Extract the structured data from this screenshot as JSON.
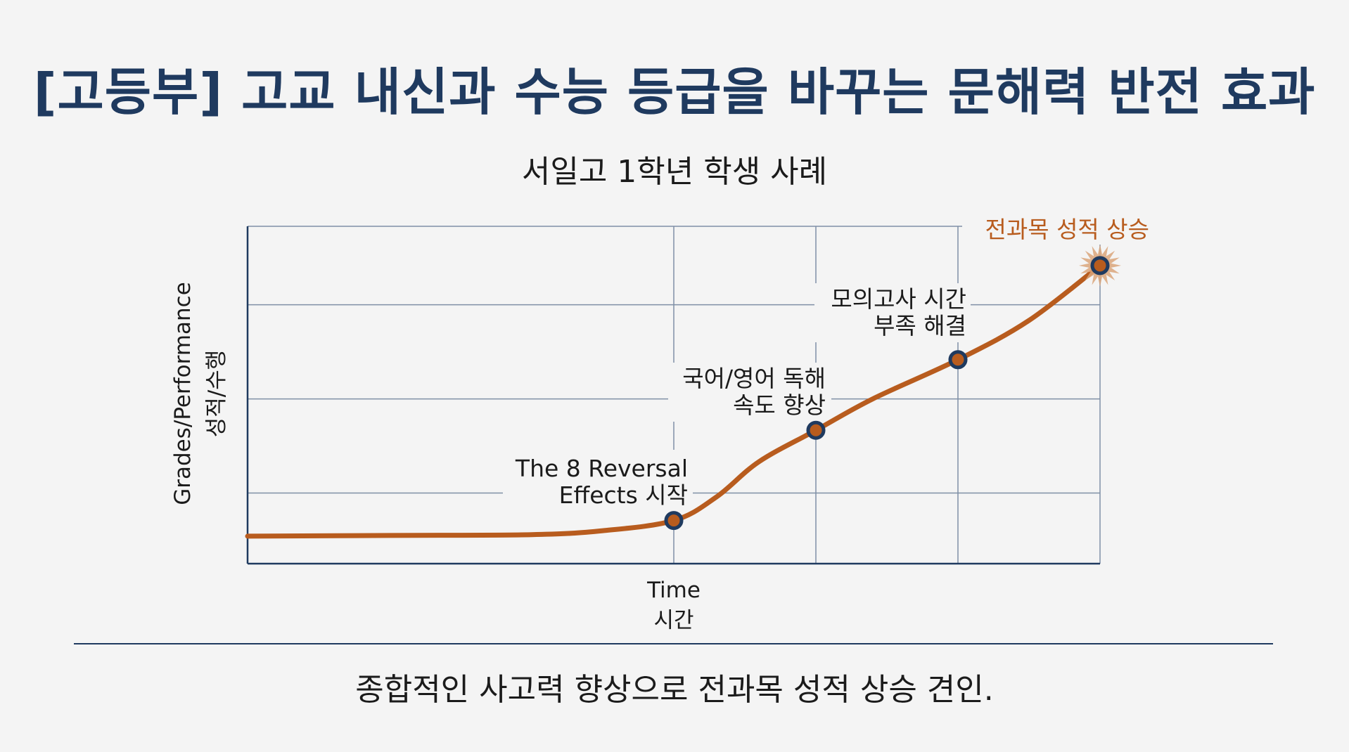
{
  "title": "[고등부] 고교 내신과 수능 등급을 바꾸는 문해력 반전 효과",
  "subtitle": "서일고 1학년 학생 사례",
  "caption": "종합적인 사고력 향상으로 전과목 성적 상승 견인.",
  "colors": {
    "title": "#1f3a5f",
    "axis": "#1f3a5f",
    "grid": "#7f8fa6",
    "line": "#b85c1e",
    "marker_fill": "#b85c1e",
    "marker_stroke": "#1f3a5f",
    "highlight_text": "#b85c1e",
    "starburst": "#d9a57a"
  },
  "chart_data": {
    "type": "line",
    "title": "",
    "xlabel": "Time",
    "xlabel_ko": "시간",
    "ylabel": "Grades/Performance",
    "ylabel_ko": "성적/수행",
    "xlim": [
      0,
      6
    ],
    "ylim": [
      0,
      4.3
    ],
    "grid": true,
    "x_gridlines": [
      3,
      4,
      5,
      6
    ],
    "y_gridlines": [
      0.9,
      2.1,
      3.3,
      4.3
    ],
    "series": [
      {
        "points": [
          [
            0,
            0.35
          ],
          [
            1,
            0.36
          ],
          [
            2,
            0.37
          ],
          [
            2.5,
            0.42
          ],
          [
            3,
            0.55
          ],
          [
            3.3,
            0.85
          ],
          [
            3.6,
            1.3
          ],
          [
            4,
            1.7
          ],
          [
            4.4,
            2.1
          ],
          [
            5,
            2.6
          ],
          [
            5.5,
            3.1
          ],
          [
            6,
            3.8
          ]
        ]
      }
    ],
    "markers": [
      {
        "x": 3,
        "y": 0.55,
        "label_lines": [
          "The 8 Reversal",
          "Effects 시작"
        ]
      },
      {
        "x": 4,
        "y": 1.7,
        "label_lines": [
          "국어/영어 독해",
          "속도 향상"
        ]
      },
      {
        "x": 5,
        "y": 2.6,
        "label_lines": [
          "모의고사 시간",
          "부족 해결"
        ]
      },
      {
        "x": 6,
        "y": 3.8,
        "label_lines": [
          "전과목 성적 상승"
        ],
        "highlight": true
      }
    ]
  }
}
